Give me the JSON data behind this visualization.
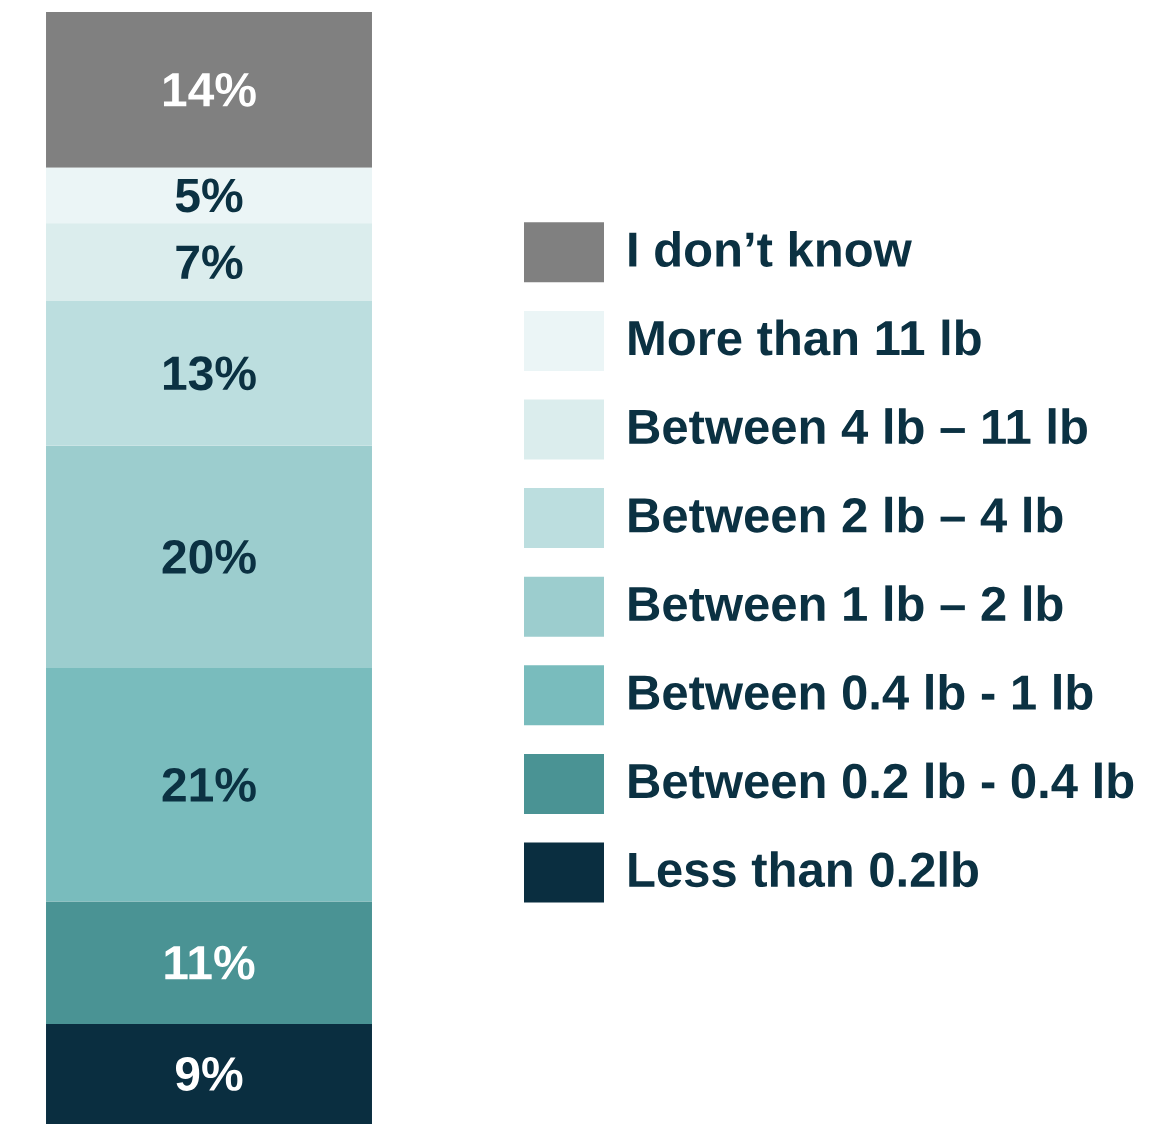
{
  "chart_data": {
    "type": "bar",
    "stacked": true,
    "categories": [
      null
    ],
    "tick_labels": false,
    "legend": "right",
    "series": [
      {
        "name": "Less than 0.2lb",
        "color": "#0a2e40",
        "values": [
          9
        ],
        "value_labels": [
          "9%"
        ]
      },
      {
        "name": "Between 0.2 lb - 0.4 lb",
        "color": "#4a9394",
        "values": [
          11
        ],
        "value_labels": [
          "11%"
        ]
      },
      {
        "name": "Between 0.4 lb - 1 lb",
        "color": "#79bcbd",
        "values": [
          21
        ],
        "value_labels": [
          "21%"
        ]
      },
      {
        "name": "Between 1 lb – 2 lb",
        "color": "#9ccdce",
        "values": [
          20
        ],
        "value_labels": [
          "20%"
        ]
      },
      {
        "name": "Between 2 lb – 4 lb",
        "color": "#bcdedf",
        "values": [
          13
        ],
        "value_labels": [
          "13%"
        ]
      },
      {
        "name": "Between 4 lb – 11 lb",
        "color": "#dbeded",
        "values": [
          7
        ],
        "value_labels": [
          "7%"
        ]
      },
      {
        "name": "More than 11 lb",
        "color": "#ebf5f6",
        "values": [
          5
        ],
        "value_labels": [
          "5%"
        ]
      },
      {
        "name": "I don’t know",
        "color": "#808080",
        "values": [
          14
        ],
        "value_labels": [
          "14%"
        ]
      }
    ]
  }
}
